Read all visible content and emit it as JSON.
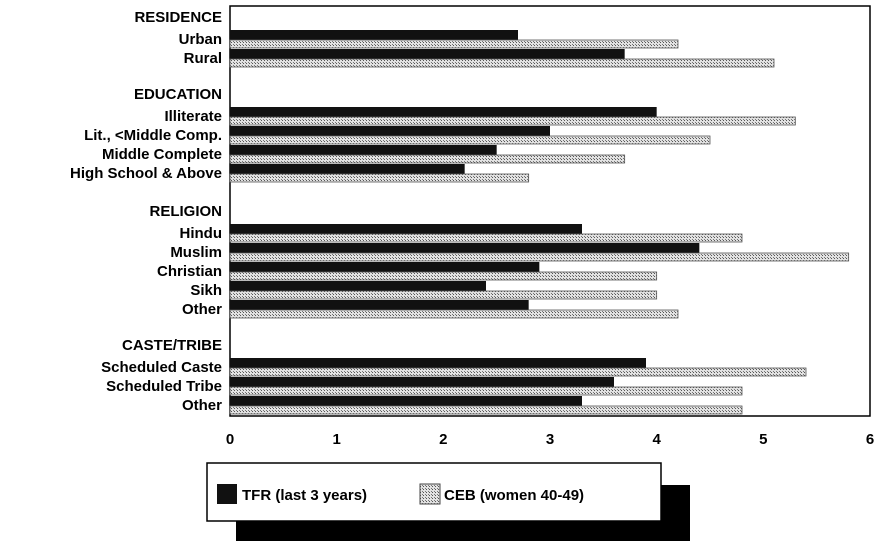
{
  "chart_data": {
    "type": "bar",
    "orientation": "horizontal",
    "xlim": [
      0,
      6
    ],
    "xticks": [
      "0",
      "1",
      "2",
      "3",
      "4",
      "5",
      "6"
    ],
    "grid": false,
    "legend_position": "bottom",
    "groups": [
      {
        "name": "RESIDENCE",
        "categories": [
          "Urban",
          "Rural"
        ],
        "tfr": [
          2.7,
          3.7
        ],
        "ceb": [
          4.2,
          5.1
        ]
      },
      {
        "name": "EDUCATION",
        "categories": [
          "Illiterate",
          "Lit., <Middle Comp.",
          "Middle Complete",
          "High School & Above"
        ],
        "tfr": [
          4.0,
          3.0,
          2.5,
          2.2
        ],
        "ceb": [
          5.3,
          4.5,
          3.7,
          2.8
        ]
      },
      {
        "name": "RELIGION",
        "categories": [
          "Hindu",
          "Muslim",
          "Christian",
          "Sikh",
          "Other"
        ],
        "tfr": [
          3.3,
          4.4,
          2.9,
          2.4,
          2.8
        ],
        "ceb": [
          4.8,
          5.8,
          4.0,
          4.0,
          4.2
        ]
      },
      {
        "name": "CASTE/TRIBE",
        "categories": [
          "Scheduled Caste",
          "Scheduled Tribe",
          "Other"
        ],
        "tfr": [
          3.9,
          3.6,
          3.3
        ],
        "ceb": [
          5.4,
          4.8,
          4.8
        ]
      }
    ],
    "series": [
      {
        "name": "TFR (last 3 years)",
        "color": "#111111"
      },
      {
        "name": "CEB (women 40-49)",
        "color": "#bdbdbd"
      }
    ]
  }
}
